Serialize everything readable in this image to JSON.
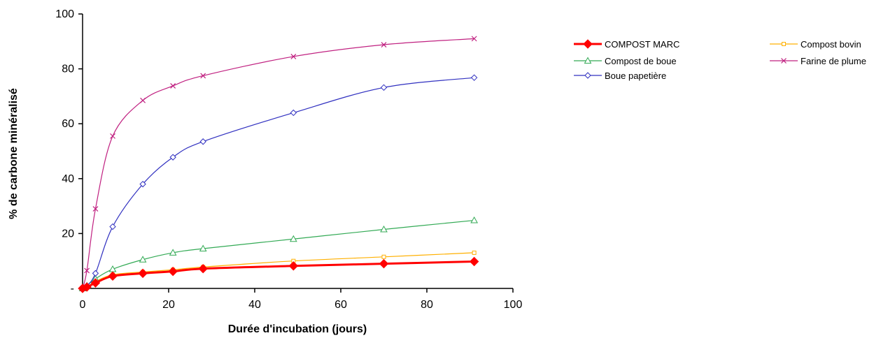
{
  "chart_data": {
    "type": "line",
    "xlabel": "Durée d'incubation (jours)",
    "ylabel": "% de carbone minéralisé",
    "xlim": [
      0,
      100
    ],
    "ylim": [
      0,
      100
    ],
    "x_ticks": [
      "0",
      "20",
      "40",
      "60",
      "80",
      "100"
    ],
    "y_ticks": [
      "-",
      "20",
      "40",
      "60",
      "80",
      "100"
    ],
    "y_tick_values": [
      0,
      20,
      40,
      60,
      80,
      100
    ],
    "x_tick_values": [
      0,
      20,
      40,
      60,
      80,
      100
    ],
    "grid": false,
    "legend_position": "right",
    "series": [
      {
        "name": "COMPOST MARC",
        "color": "#ff0000",
        "marker": "diamond-filled",
        "thick": true,
        "x": [
          0,
          1,
          3,
          7,
          14,
          21,
          28,
          49,
          70,
          91
        ],
        "y": [
          0,
          0.5,
          2,
          4.5,
          5.5,
          6.2,
          7.2,
          8.2,
          9.0,
          9.8
        ]
      },
      {
        "name": "Compost bovin",
        "color": "#ffb000",
        "marker": "square",
        "x": [
          0,
          1,
          3,
          7,
          14,
          21,
          28,
          49,
          70,
          91
        ],
        "y": [
          0,
          0.5,
          2.5,
          5.0,
          6.0,
          6.8,
          7.8,
          10.0,
          11.5,
          13.0
        ]
      },
      {
        "name": "Compost de boue",
        "color": "#33aa55",
        "marker": "triangle",
        "x": [
          0,
          1,
          3,
          7,
          14,
          21,
          28,
          49,
          70,
          91
        ],
        "y": [
          0,
          1.0,
          3.5,
          7.0,
          10.5,
          13.0,
          14.5,
          18.0,
          21.5,
          24.8
        ]
      },
      {
        "name": "Farine de plume",
        "color": "#c02080",
        "marker": "x",
        "x": [
          0,
          1,
          3,
          7,
          14,
          21,
          28,
          49,
          70,
          91
        ],
        "y": [
          0,
          6.5,
          29.0,
          55.5,
          68.5,
          73.8,
          77.5,
          84.5,
          88.8,
          91.0
        ]
      },
      {
        "name": "Boue papetière",
        "color": "#3030c0",
        "marker": "diamond",
        "x": [
          0,
          1,
          3,
          7,
          14,
          21,
          28,
          49,
          70,
          91
        ],
        "y": [
          0,
          1.0,
          5.5,
          22.5,
          38.0,
          47.8,
          53.5,
          64.0,
          73.2,
          76.8
        ]
      }
    ]
  }
}
